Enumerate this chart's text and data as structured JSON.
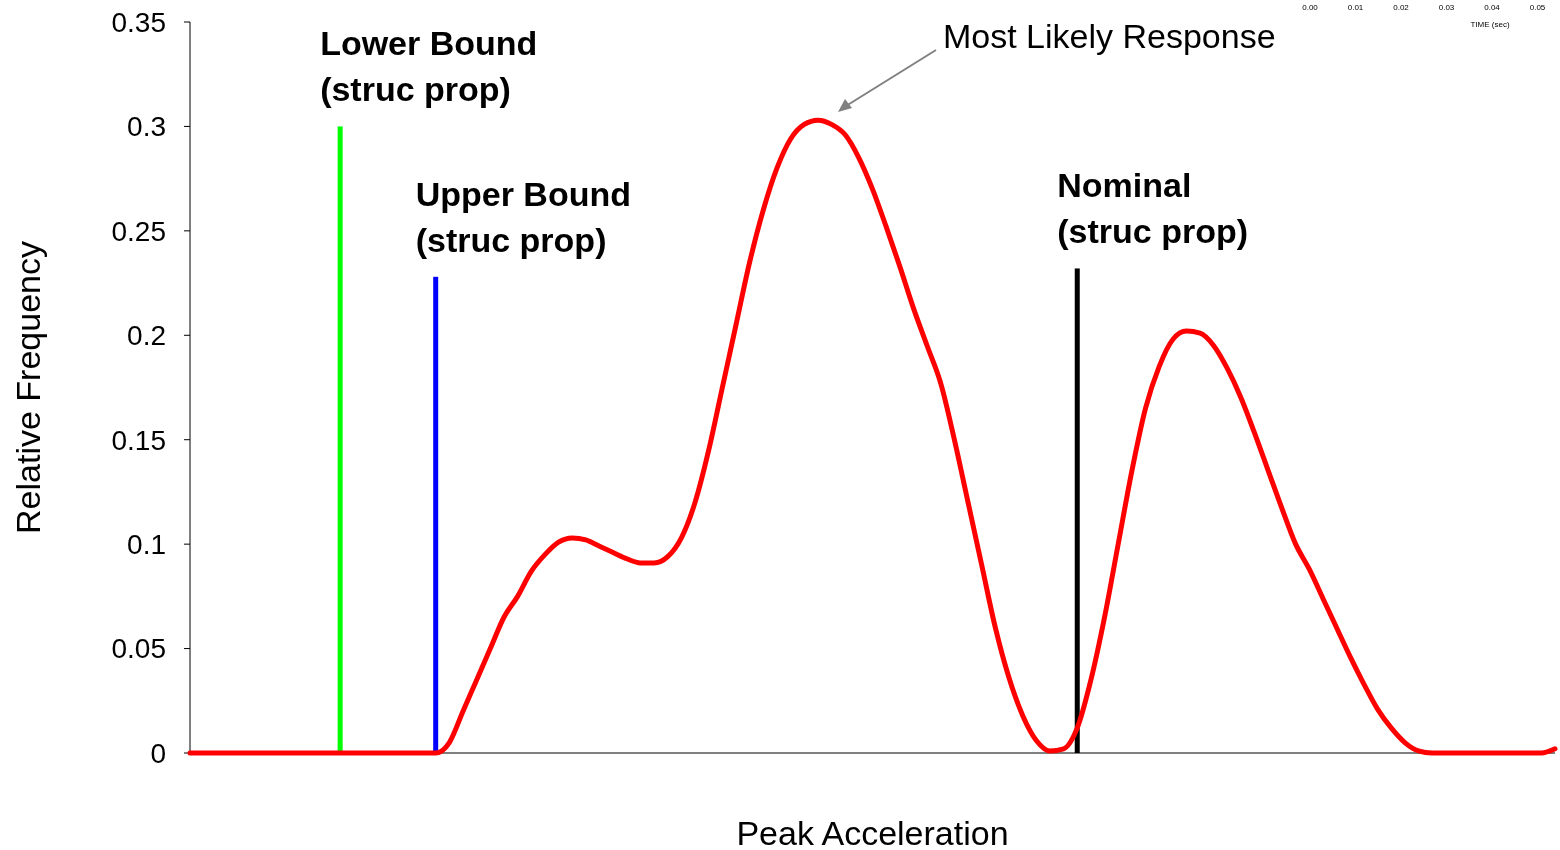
{
  "chart_data": {
    "type": "line",
    "xlabel": "Peak Acceleration",
    "ylabel": "Relative Frequency",
    "categories": [
      null,
      null,
      null,
      null,
      null,
      null,
      null,
      null,
      null,
      null,
      null,
      null,
      null,
      null,
      null,
      null,
      null,
      null,
      null,
      null,
      null,
      null,
      null,
      null,
      null,
      null,
      null,
      null,
      null,
      null,
      null,
      null,
      null,
      null,
      null,
      null,
      null,
      null,
      null,
      null,
      null,
      null,
      null,
      null,
      null,
      null,
      null,
      null,
      null,
      null,
      null,
      null,
      null,
      null,
      null,
      null,
      null,
      null,
      null,
      null,
      null,
      null,
      null,
      null,
      null,
      null,
      null,
      null,
      null,
      null,
      null,
      null,
      null,
      null,
      null,
      null,
      null,
      null,
      null,
      null,
      null,
      null,
      null,
      null,
      null,
      null,
      null,
      null,
      null,
      null,
      null,
      null,
      null,
      null,
      null,
      null,
      null,
      null,
      null,
      null,
      null
    ],
    "ylim": [
      0,
      0.35
    ],
    "yticks": [
      0,
      0.05,
      0.1,
      0.15,
      0.2,
      0.25,
      0.3,
      0.35
    ],
    "series": [
      {
        "color": "#ff0000",
        "values": [
          0,
          0,
          0,
          0,
          0,
          0,
          0,
          0,
          0,
          0,
          0,
          0,
          0,
          0,
          0,
          0,
          0,
          0,
          0,
          0.005,
          0.02,
          0.035,
          0.05,
          0.065,
          0.075,
          0.087,
          0.095,
          0.101,
          0.103,
          0.102,
          0.099,
          0.096,
          0.093,
          0.091,
          0.091,
          0.094,
          0.103,
          0.12,
          0.145,
          0.175,
          0.205,
          0.235,
          0.26,
          0.28,
          0.294,
          0.301,
          0.303,
          0.301,
          0.296,
          0.285,
          0.27,
          0.252,
          0.233,
          0.213,
          0.195,
          0.177,
          0.15,
          0.12,
          0.09,
          0.06,
          0.036,
          0.018,
          0.006,
          0.001,
          0.002,
          0.012,
          0.035,
          0.065,
          0.1,
          0.135,
          0.165,
          0.185,
          0.198,
          0.202,
          0.201,
          0.195,
          0.184,
          0.17,
          0.153,
          0.135,
          0.117,
          0.1,
          0.088,
          0.074,
          0.06,
          0.046,
          0.033,
          0.021,
          0.012,
          0.005,
          0.001,
          0,
          0,
          0,
          0,
          0,
          0,
          0,
          0,
          0,
          0.002
        ]
      },
      {
        "type": "bar",
        "name": "Lower Bound (struc prop)",
        "color": "#00ff00",
        "values": [
          null,
          null,
          null,
          null,
          null,
          null,
          null,
          null,
          null,
          null,
          null,
          0.3,
          null,
          null,
          null,
          null,
          null,
          null,
          null,
          null,
          null,
          null,
          null,
          null,
          null,
          null,
          null,
          null,
          null,
          null,
          null,
          null,
          null,
          null,
          null,
          null,
          null,
          null,
          null,
          null,
          null,
          null,
          null,
          null,
          null,
          null,
          null,
          null,
          null,
          null,
          null,
          null,
          null,
          null,
          null,
          null,
          null,
          null,
          null,
          null,
          null,
          null,
          null,
          null,
          null,
          null,
          null,
          null,
          null,
          null,
          null,
          null,
          null,
          null,
          null,
          null,
          null,
          null,
          null,
          null,
          null,
          null,
          null,
          null,
          null,
          null,
          null,
          null,
          null,
          null,
          null,
          null,
          null,
          null,
          null,
          null,
          null,
          null,
          null,
          null,
          null
        ]
      },
      {
        "type": "bar",
        "name": "Upper Bound (struc prop)",
        "color": "#0000ff",
        "values": [
          null,
          null,
          null,
          null,
          null,
          null,
          null,
          null,
          null,
          null,
          null,
          null,
          null,
          null,
          null,
          null,
          null,
          null,
          0.228,
          null,
          null,
          null,
          null,
          null,
          null,
          null,
          null,
          null,
          null,
          null,
          null,
          null,
          null,
          null,
          null,
          null,
          null,
          null,
          null,
          null,
          null,
          null,
          null,
          null,
          null,
          null,
          null,
          null,
          null,
          null,
          null,
          null,
          null,
          null,
          null,
          null,
          null,
          null,
          null,
          null,
          null,
          null,
          null,
          null,
          null,
          null,
          null,
          null,
          null,
          null,
          null,
          null,
          null,
          null,
          null,
          null,
          null,
          null,
          null,
          null,
          null,
          null,
          null,
          null,
          null,
          null,
          null,
          null,
          null,
          null,
          null,
          null,
          null,
          null,
          null,
          null,
          null,
          null,
          null,
          null,
          null
        ]
      },
      {
        "type": "bar",
        "name": "Nominal (struc prop)",
        "color": "#000000",
        "values": [
          null,
          null,
          null,
          null,
          null,
          null,
          null,
          null,
          null,
          null,
          null,
          null,
          null,
          null,
          null,
          null,
          null,
          null,
          null,
          null,
          null,
          null,
          null,
          null,
          null,
          null,
          null,
          null,
          null,
          null,
          null,
          null,
          null,
          null,
          null,
          null,
          null,
          null,
          null,
          null,
          null,
          null,
          null,
          null,
          null,
          null,
          null,
          null,
          null,
          null,
          null,
          null,
          null,
          null,
          null,
          null,
          null,
          null,
          null,
          null,
          null,
          null,
          null,
          null,
          null,
          0.232,
          null,
          null,
          null,
          null,
          null,
          null,
          null,
          null,
          null,
          null,
          null,
          null,
          null,
          null,
          null,
          null,
          null,
          null,
          null,
          null,
          null,
          null,
          null,
          null,
          null,
          null,
          null,
          null,
          null,
          null,
          null,
          null,
          null,
          null,
          null
        ]
      }
    ],
    "annotations": [
      "Most Likely Response",
      "0.00",
      "0.01",
      "0.02",
      "0.03",
      "0.04",
      "0.05",
      "TIME (sec)"
    ]
  }
}
